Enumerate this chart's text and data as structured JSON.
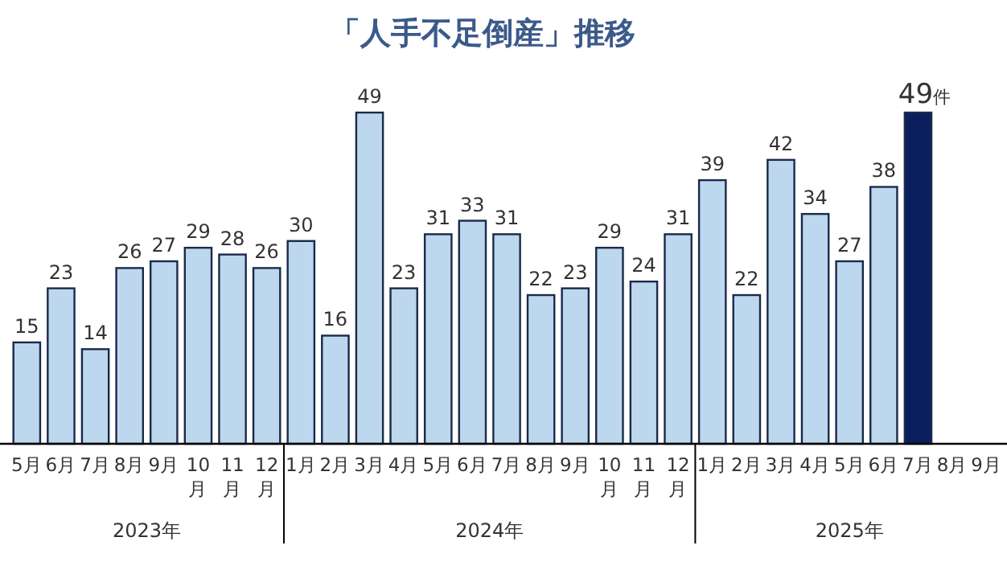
{
  "chart_data": {
    "type": "bar",
    "title": "「人手不足倒産」推移",
    "categories": [
      "5月",
      "6月",
      "7月",
      "8月",
      "9月",
      "10月",
      "11月",
      "12月",
      "1月",
      "2月",
      "3月",
      "4月",
      "5月",
      "6月",
      "7月",
      "8月",
      "9月",
      "10月",
      "11月",
      "12月",
      "1月",
      "2月",
      "3月",
      "4月",
      "5月",
      "6月",
      "7月",
      "8月",
      "9月"
    ],
    "values": [
      15,
      23,
      14,
      26,
      27,
      29,
      28,
      26,
      30,
      16,
      49,
      23,
      31,
      33,
      31,
      22,
      23,
      29,
      24,
      31,
      39,
      22,
      42,
      34,
      27,
      38,
      49,
      null,
      null
    ],
    "colors": [
      "#bdd7ee",
      "#bdd7ee",
      "#bdd7ee",
      "#bdd7ee",
      "#bdd7ee",
      "#bdd7ee",
      "#bdd7ee",
      "#bdd7ee",
      "#bdd7ee",
      "#bdd7ee",
      "#bdd7ee",
      "#bdd7ee",
      "#bdd7ee",
      "#bdd7ee",
      "#bdd7ee",
      "#bdd7ee",
      "#bdd7ee",
      "#bdd7ee",
      "#bdd7ee",
      "#bdd7ee",
      "#bdd7ee",
      "#bdd7ee",
      "#bdd7ee",
      "#bdd7ee",
      "#bdd7ee",
      "#bdd7ee",
      "#0b1f5e",
      null,
      null
    ],
    "value_labels": [
      "15",
      "23",
      "14",
      "26",
      "27",
      "29",
      "28",
      "26",
      "30",
      "16",
      "49",
      "23",
      "31",
      "33",
      "31",
      "22",
      "23",
      "29",
      "24",
      "31",
      "39",
      "22",
      "42",
      "34",
      "27",
      "38",
      "49件",
      null,
      null
    ],
    "annotations": [
      "2023年",
      "2024年",
      "2025年"
    ]
  }
}
